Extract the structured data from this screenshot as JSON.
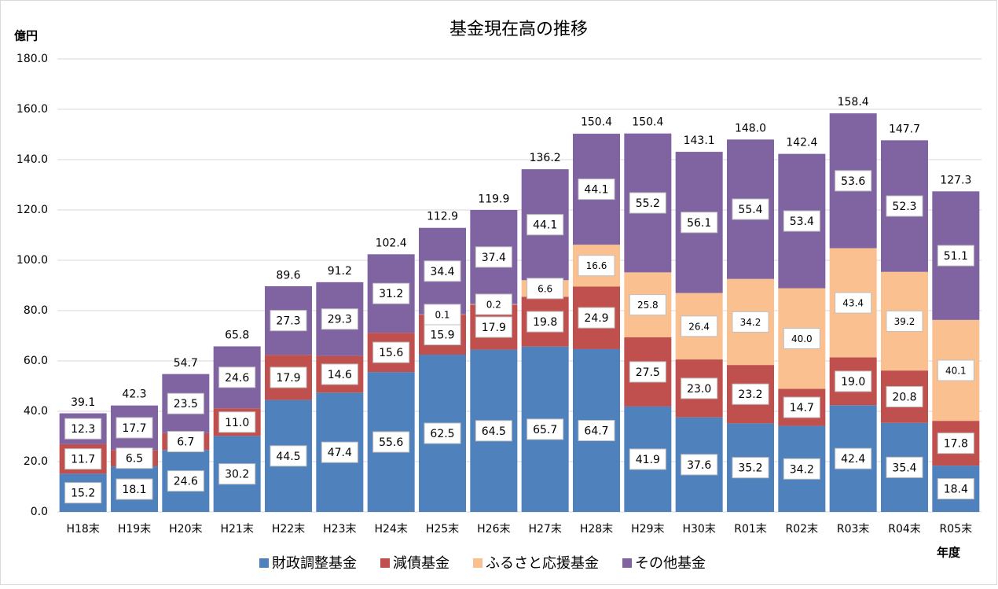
{
  "chart_data": {
    "type": "stacked_bar",
    "title": "基金現在高の推移",
    "y_label": "億円",
    "x_label": "年度",
    "categories": [
      "H18末",
      "H19末",
      "H20末",
      "H21末",
      "H22末",
      "H23末",
      "H24末",
      "H25末",
      "H26末",
      "H27末",
      "H28末",
      "H29末",
      "H30末",
      "R01末",
      "R02末",
      "R03末",
      "R04末",
      "R05末"
    ],
    "series": [
      {
        "name": "財政調整基金",
        "color": "#4f81bd",
        "values": [
          15.2,
          18.1,
          24.6,
          30.2,
          44.5,
          47.4,
          55.6,
          62.5,
          64.5,
          65.7,
          64.7,
          41.9,
          37.6,
          35.2,
          34.2,
          42.4,
          35.4,
          18.4
        ],
        "value_labels": [
          "15.2",
          "18.1",
          "24.6",
          "30.2",
          "44.5",
          "47.4",
          "55.6",
          "62.5",
          "64.5",
          "65.7",
          "64.7",
          "41.9",
          "37.6",
          "35.2",
          "34.2",
          "42.4",
          "35.4",
          "18.4"
        ]
      },
      {
        "name": "減債基金",
        "color": "#c0504d",
        "values": [
          11.7,
          6.5,
          6.7,
          11.0,
          17.9,
          14.6,
          15.6,
          15.9,
          17.9,
          19.8,
          24.9,
          27.5,
          23.0,
          23.2,
          14.7,
          19.0,
          20.8,
          17.8
        ],
        "value_labels": [
          "11.7",
          "6.5",
          "6.7",
          "11.0",
          "17.9",
          "14.6",
          "15.6",
          "15.9",
          "17.9",
          "19.8",
          "24.9",
          "27.5",
          "23.0",
          "23.2",
          "14.7",
          "19.0",
          "20.8",
          "17.8"
        ]
      },
      {
        "name": "ふるさと応援基金",
        "color": "#fac090",
        "values": [
          null,
          null,
          null,
          null,
          null,
          null,
          null,
          0.1,
          0.2,
          6.6,
          16.6,
          25.8,
          26.4,
          34.2,
          40.0,
          43.4,
          39.2,
          40.1
        ],
        "value_labels": [
          null,
          null,
          null,
          null,
          null,
          null,
          null,
          "0.1",
          "0.2",
          "6.6",
          "16.6",
          "25.8",
          "26.4",
          "34.2",
          "40.0",
          "43.4",
          "39.2",
          "40.1"
        ]
      },
      {
        "name": "その他基金",
        "color": "#8064a2",
        "values": [
          12.3,
          17.7,
          23.5,
          24.6,
          27.3,
          29.3,
          31.2,
          34.4,
          37.4,
          44.1,
          44.1,
          55.2,
          56.1,
          55.4,
          53.4,
          53.6,
          52.3,
          51.1
        ],
        "value_labels": [
          "12.3",
          "17.7",
          "23.5",
          "24.6",
          "27.3",
          "29.3",
          "31.2",
          "34.4",
          "37.4",
          "44.1",
          "44.1",
          "55.2",
          "56.1",
          "55.4",
          "53.4",
          "53.6",
          "52.3",
          "51.1"
        ]
      }
    ],
    "totals": {
      "values": [
        39.1,
        42.3,
        54.7,
        65.8,
        89.6,
        91.2,
        102.4,
        112.9,
        119.9,
        136.2,
        150.4,
        150.4,
        143.1,
        148.0,
        142.4,
        158.4,
        147.7,
        127.3
      ],
      "value_labels": [
        "39.1",
        "42.3",
        "54.7",
        "65.8",
        "89.6",
        "91.2",
        "102.4",
        "112.9",
        "119.9",
        "136.2",
        "150.4",
        "150.4",
        "143.1",
        "148.0",
        "142.4",
        "158.4",
        "147.7",
        "127.3"
      ]
    },
    "ylim": [
      0,
      180
    ],
    "yticks": [
      {
        "value": 0,
        "label": "0.0"
      },
      {
        "value": 20,
        "label": "20.0"
      },
      {
        "value": 40,
        "label": "40.0"
      },
      {
        "value": 60,
        "label": "60.0"
      },
      {
        "value": 80,
        "label": "80.0"
      },
      {
        "value": 100,
        "label": "100.0"
      },
      {
        "value": 120,
        "label": "120.0"
      },
      {
        "value": 140,
        "label": "140.0"
      },
      {
        "value": 160,
        "label": "160.0"
      },
      {
        "value": 180,
        "label": "180.0"
      }
    ],
    "grid": true
  }
}
